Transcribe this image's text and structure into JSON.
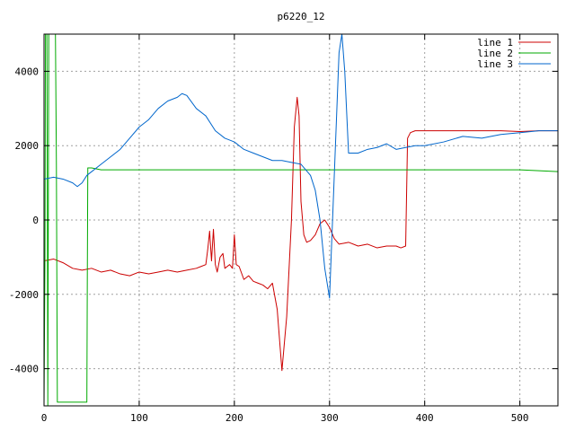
{
  "chart_data": {
    "type": "line",
    "title": "p6220_12",
    "xlabel": "",
    "ylabel": "",
    "xlim": [
      0,
      540
    ],
    "ylim": [
      -5000,
      5000
    ],
    "xticks": [
      0,
      100,
      200,
      300,
      400,
      500
    ],
    "yticks": [
      -4000,
      -2000,
      0,
      2000,
      4000
    ],
    "grid": true,
    "legend_position": "top-right",
    "series": [
      {
        "name": "line 1",
        "color": "#cc0000",
        "x": [
          0,
          10,
          20,
          30,
          40,
          50,
          60,
          70,
          80,
          90,
          100,
          110,
          120,
          130,
          140,
          150,
          160,
          165,
          170,
          172,
          174,
          176,
          178,
          180,
          182,
          185,
          188,
          190,
          195,
          198,
          200,
          202,
          205,
          210,
          215,
          220,
          225,
          230,
          235,
          240,
          245,
          250,
          255,
          260,
          263,
          266,
          268,
          270,
          273,
          276,
          280,
          285,
          290,
          295,
          300,
          305,
          310,
          320,
          330,
          340,
          350,
          360,
          370,
          375,
          380,
          382,
          385,
          390,
          400,
          420,
          440,
          460,
          480,
          500,
          520,
          540
        ],
        "y": [
          -1100,
          -1050,
          -1150,
          -1300,
          -1350,
          -1300,
          -1400,
          -1350,
          -1450,
          -1500,
          -1400,
          -1450,
          -1400,
          -1350,
          -1400,
          -1350,
          -1300,
          -1250,
          -1200,
          -800,
          -300,
          -1100,
          -250,
          -1200,
          -1400,
          -1000,
          -900,
          -1300,
          -1200,
          -1300,
          -400,
          -1200,
          -1250,
          -1600,
          -1500,
          -1650,
          -1700,
          -1750,
          -1850,
          -1700,
          -2400,
          -4050,
          -2600,
          0,
          2500,
          3300,
          2800,
          500,
          -400,
          -600,
          -550,
          -400,
          -100,
          0,
          -200,
          -500,
          -650,
          -600,
          -700,
          -650,
          -750,
          -700,
          -700,
          -750,
          -700,
          2200,
          2350,
          2400,
          2400,
          2400,
          2400,
          2400,
          2400,
          2380,
          2400,
          2400
        ]
      },
      {
        "name": "line 2",
        "color": "#00aa00",
        "x": [
          0,
          1,
          1.5,
          3,
          4,
          5,
          10,
          12,
          13,
          14,
          15,
          45,
          45.5,
          46,
          50,
          60,
          80,
          100,
          150,
          200,
          250,
          300,
          350,
          400,
          450,
          500,
          540
        ],
        "y": [
          -5000,
          -1000,
          5000,
          5000,
          -5000,
          5000,
          5000,
          5000,
          1500,
          -4900,
          -4900,
          -4900,
          -1500,
          1400,
          1400,
          1350,
          1350,
          1350,
          1350,
          1350,
          1350,
          1350,
          1350,
          1350,
          1350,
          1350,
          1300
        ]
      },
      {
        "name": "line 3",
        "color": "#0066cc",
        "x": [
          0,
          10,
          20,
          30,
          35,
          40,
          45,
          50,
          60,
          70,
          80,
          90,
          100,
          110,
          120,
          130,
          140,
          145,
          150,
          160,
          170,
          180,
          190,
          200,
          210,
          220,
          230,
          240,
          250,
          260,
          270,
          280,
          285,
          290,
          295,
          300,
          305,
          310,
          313,
          316,
          320,
          330,
          340,
          350,
          360,
          370,
          380,
          390,
          400,
          420,
          440,
          460,
          480,
          500,
          520,
          540
        ],
        "y": [
          1100,
          1150,
          1100,
          1000,
          900,
          1000,
          1200,
          1300,
          1500,
          1700,
          1900,
          2200,
          2500,
          2700,
          3000,
          3200,
          3300,
          3400,
          3350,
          3000,
          2800,
          2400,
          2200,
          2100,
          1900,
          1800,
          1700,
          1600,
          1600,
          1550,
          1500,
          1200,
          800,
          0,
          -1300,
          -2100,
          1200,
          4500,
          5000,
          4000,
          1800,
          1800,
          1900,
          1950,
          2050,
          1900,
          1950,
          2000,
          2000,
          2100,
          2250,
          2200,
          2300,
          2350,
          2400,
          2400
        ]
      }
    ]
  }
}
